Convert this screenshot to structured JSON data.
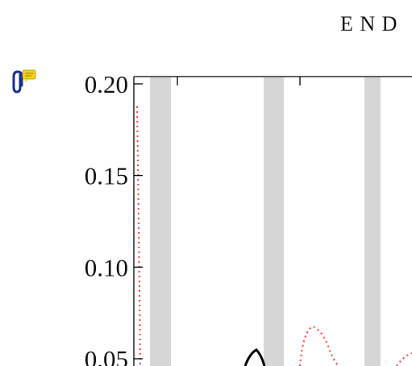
{
  "chart_data": {
    "type": "line",
    "title": "",
    "header_label": "E N D",
    "xlabel": "",
    "ylabel": "",
    "ylim": [
      0.05,
      0.2
    ],
    "y_ticks": [
      {
        "value": 0.2,
        "label": "0.20"
      },
      {
        "value": 0.15,
        "label": "0.15"
      },
      {
        "value": 0.1,
        "label": "0.10"
      },
      {
        "value": 0.05,
        "label": "0.05"
      }
    ],
    "grid": false,
    "legend": "none",
    "shaded_bands": [
      1,
      2,
      3
    ],
    "series": [
      {
        "style": "dotted",
        "color": "#ff3b3b"
      },
      {
        "style": "solid",
        "color": "#000000"
      }
    ]
  },
  "annotation": {
    "icon": "paperclip-comment-icon",
    "clip_color": "#1a2f8f",
    "note_color": "#f2d21b"
  },
  "colors": {
    "band": "#d6d6d6",
    "axis": "#000000"
  }
}
